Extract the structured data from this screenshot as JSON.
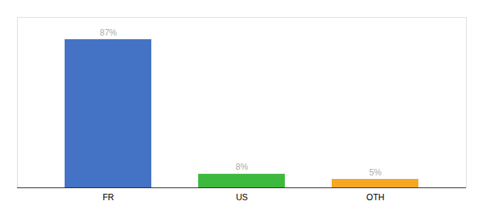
{
  "chart_data": {
    "type": "bar",
    "categories": [
      "FR",
      "US",
      "OTH"
    ],
    "values": [
      87,
      8,
      5
    ],
    "value_labels": [
      "87%",
      "8%",
      "5%"
    ],
    "colors": [
      "#4472c4",
      "#3dba3d",
      "#f5a623"
    ],
    "ylim": [
      0,
      100
    ],
    "data_labels": true,
    "tick_labels": "x",
    "grid": false
  }
}
